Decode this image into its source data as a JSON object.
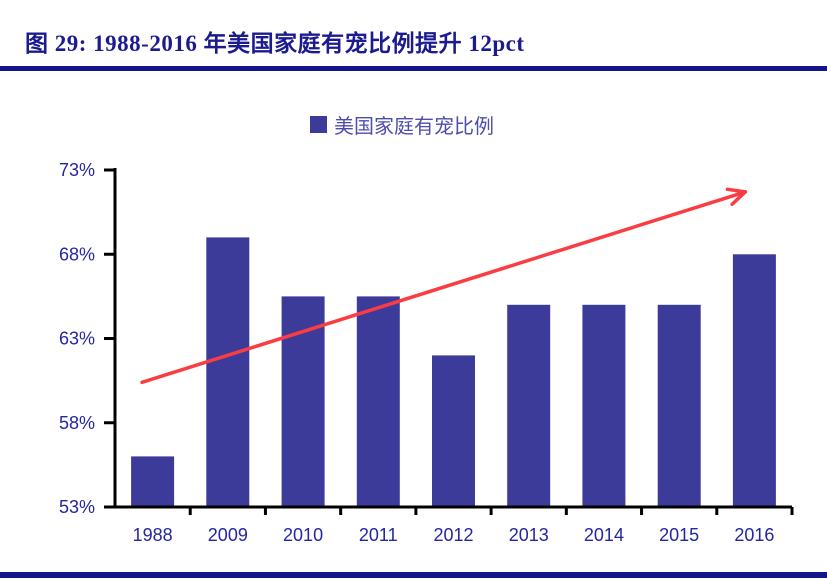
{
  "figure": {
    "title": "图 29: 1988-2016 年美国家庭有宠比例提升 12pct"
  },
  "legend": {
    "label": "美国家庭有宠比例"
  },
  "colors": {
    "navy_rule": "#14148c",
    "title_text": "#1b1b8f",
    "axis_label": "#2525a2",
    "legend_text": "#4d4dab",
    "bar": "#3d3b99",
    "arrow_red": "#fb3c43",
    "axis_line": "#000000",
    "background": "#ffffff"
  },
  "chart_data": {
    "type": "bar",
    "title": "",
    "xlabel": "",
    "ylabel": "",
    "legend_entries": [
      "美国家庭有宠比例"
    ],
    "legend_position": "top",
    "grid": false,
    "categories": [
      "1988",
      "2009",
      "2010",
      "2011",
      "2012",
      "2013",
      "2014",
      "2015",
      "2016"
    ],
    "series": [
      {
        "name": "美国家庭有宠比例",
        "values": [
          56,
          69,
          65.5,
          65.5,
          62,
          65,
          65,
          65,
          68
        ],
        "unit": "%"
      }
    ],
    "ylim": [
      53,
      73
    ],
    "yticks": [
      53,
      58,
      63,
      68,
      73
    ],
    "ytick_labels": [
      "53%",
      "58%",
      "63%",
      "68%",
      "73%"
    ],
    "bar_color": "#3d3b99",
    "trend_arrow": {
      "color": "#fb3c43",
      "from": {
        "x_frac": 0.04,
        "value": 60.4
      },
      "to": {
        "x_frac": 0.931,
        "value": 71.7
      }
    }
  }
}
